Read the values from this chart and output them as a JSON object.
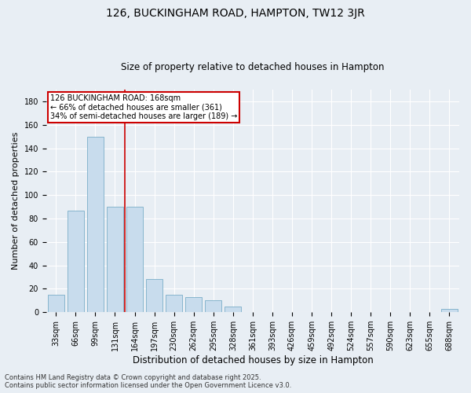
{
  "title": "126, BUCKINGHAM ROAD, HAMPTON, TW12 3JR",
  "subtitle": "Size of property relative to detached houses in Hampton",
  "xlabel": "Distribution of detached houses by size in Hampton",
  "ylabel": "Number of detached properties",
  "categories": [
    "33sqm",
    "66sqm",
    "99sqm",
    "131sqm",
    "164sqm",
    "197sqm",
    "230sqm",
    "262sqm",
    "295sqm",
    "328sqm",
    "361sqm",
    "393sqm",
    "426sqm",
    "459sqm",
    "492sqm",
    "524sqm",
    "557sqm",
    "590sqm",
    "623sqm",
    "655sqm",
    "688sqm"
  ],
  "values": [
    15,
    87,
    150,
    90,
    90,
    28,
    15,
    13,
    10,
    5,
    0,
    0,
    0,
    0,
    0,
    0,
    0,
    0,
    0,
    0,
    3
  ],
  "bar_color": "#c8dced",
  "bar_edge_color": "#7aaec8",
  "property_label": "126 BUCKINGHAM ROAD: 168sqm",
  "annotation_line1": "← 66% of detached houses are smaller (361)",
  "annotation_line2": "34% of semi-detached houses are larger (189) →",
  "annotation_box_color": "#cc0000",
  "vline_x_index": 4,
  "ylim": [
    0,
    190
  ],
  "yticks": [
    0,
    20,
    40,
    60,
    80,
    100,
    120,
    140,
    160,
    180
  ],
  "footer_line1": "Contains HM Land Registry data © Crown copyright and database right 2025.",
  "footer_line2": "Contains public sector information licensed under the Open Government Licence v3.0.",
  "background_color": "#e8eef4",
  "plot_bg_color": "#e8eef4",
  "grid_color": "#ffffff",
  "title_fontsize": 10,
  "subtitle_fontsize": 8.5,
  "ylabel_fontsize": 8,
  "xlabel_fontsize": 8.5,
  "tick_fontsize": 7,
  "footer_fontsize": 6
}
